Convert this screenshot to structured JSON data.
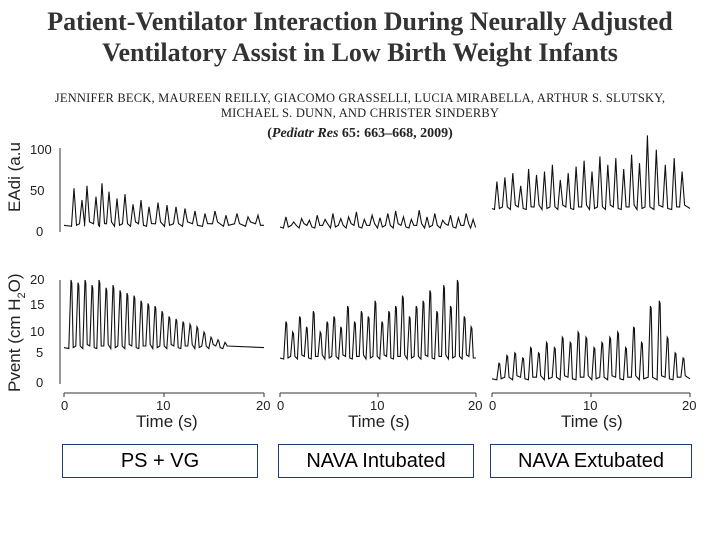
{
  "paper": {
    "title_line1": "Patient-Ventilator Interaction During Neurally Adjusted",
    "title_line2": "Ventilatory Assist in Low Birth Weight Infants",
    "authors_line1": "JENNIFER BECK, MAUREEN REILLY, GIACOMO GRASSELLI, LUCIA MIRABELLA, ARTHUR S. SLUTSKY,",
    "authors_line2": "MICHAEL S. DUNN, AND CHRISTER SINDERBY",
    "citation_journal": "Pediatr Res",
    "citation_rest": "65: 663–668, 2009"
  },
  "figure": {
    "eadi_ylabel": "EAdi (a.u",
    "pvent_ylabel_main": "Pvent (cm H",
    "pvent_ylabel_sub": "2",
    "pvent_ylabel_end": "O)",
    "eadi_ticks": [
      "0",
      "50",
      "100"
    ],
    "pvent_ticks": [
      "0",
      "5",
      "10",
      "15",
      "20"
    ],
    "x_ticks": [
      "0",
      "10",
      "20"
    ],
    "xlabel": "Time (s)"
  },
  "buttons": [
    {
      "label": "PS + VG"
    },
    {
      "label": "NAVA Intubated"
    },
    {
      "label": "NAVA Extubated"
    }
  ],
  "chart_data": {
    "type": "line",
    "xlabel": "Time (s)",
    "xlim": [
      0,
      20
    ],
    "panels": [
      {
        "mode": "PS + VG",
        "signal": "EAdi",
        "ylabel": "EAdi (a.u",
        "ylim": [
          0,
          100
        ],
        "breaths": [
          1,
          1.8,
          2.3,
          3.2,
          3.8,
          4.5,
          5.3,
          6.1,
          6.9,
          7.7,
          8.5,
          9.4,
          10.3,
          11.2,
          12.1,
          13.1,
          14.1,
          15.1,
          16.2,
          17.3,
          18.4,
          19.4
        ],
        "peaks": [
          52,
          38,
          55,
          42,
          58,
          48,
          40,
          45,
          33,
          38,
          30,
          35,
          32,
          30,
          28,
          25,
          22,
          25,
          20,
          22,
          18,
          20
        ],
        "baseline": 8
      },
      {
        "mode": "NAVA Intubated",
        "signal": "EAdi",
        "ylabel": "EAdi (a.u",
        "ylim": [
          0,
          100
        ],
        "breaths": [
          0.6,
          1.4,
          2.2,
          3,
          3.8,
          4.6,
          5.4,
          6.2,
          7,
          7.8,
          8.6,
          9.4,
          10.2,
          11,
          11.8,
          12.6,
          13.4,
          14.2,
          15,
          15.8,
          16.6,
          17.4,
          18.2,
          19,
          19.7
        ],
        "peaks": [
          18,
          12,
          16,
          14,
          20,
          15,
          22,
          16,
          18,
          24,
          15,
          20,
          17,
          22,
          25,
          18,
          15,
          26,
          18,
          22,
          14,
          20,
          17,
          22,
          15
        ],
        "baseline": 6
      },
      {
        "mode": "NAVA Extubated",
        "signal": "EAdi",
        "ylabel": "EAdi (a.u",
        "ylim": [
          0,
          100
        ],
        "breaths": [
          0.5,
          1.3,
          2.1,
          2.9,
          3.7,
          4.5,
          5.3,
          6.1,
          6.9,
          7.7,
          8.5,
          9.3,
          10.1,
          10.9,
          11.7,
          12.5,
          13.3,
          14.1,
          14.9,
          15.7,
          16.6,
          17.5,
          18.4,
          19.2
        ],
        "peaks": [
          60,
          65,
          70,
          55,
          75,
          68,
          72,
          80,
          62,
          70,
          78,
          85,
          72,
          90,
          80,
          88,
          75,
          92,
          82,
          115,
          98,
          80,
          88,
          72
        ],
        "baseline": 28
      },
      {
        "mode": "PS + VG",
        "signal": "Pvent",
        "ylabel": "Pvent (cm H2O)",
        "ylim": [
          0,
          20
        ],
        "breaths": [
          0.7,
          1.4,
          2.1,
          2.8,
          3.5,
          4.2,
          4.9,
          5.6,
          6.3,
          7,
          7.7,
          8.4,
          9.1,
          9.8,
          10.5,
          11.2,
          11.9,
          12.6,
          13.3,
          14,
          14.7,
          15.4,
          16.1
        ],
        "peaks": [
          20,
          19.5,
          20,
          19,
          20,
          18.5,
          19,
          18,
          17.5,
          17,
          16,
          15.5,
          15,
          14,
          13,
          12.5,
          12,
          11.5,
          11,
          10,
          9,
          8.5,
          8
        ],
        "baseline": 7
      },
      {
        "mode": "NAVA Intubated",
        "signal": "Pvent",
        "ylabel": "Pvent (cm H2O)",
        "ylim": [
          0,
          20
        ],
        "breaths": [
          0.6,
          1.3,
          2,
          2.7,
          3.4,
          4.1,
          4.8,
          5.5,
          6.2,
          6.9,
          7.6,
          8.3,
          9,
          9.7,
          10.4,
          11.1,
          11.8,
          12.5,
          13.2,
          13.9,
          14.6,
          15.3,
          16,
          16.7,
          17.4,
          18.1,
          18.8,
          19.5
        ],
        "peaks": [
          12,
          10,
          13,
          11,
          14,
          10,
          12,
          13,
          11,
          15,
          12,
          14,
          13,
          16,
          12,
          14,
          15,
          17,
          13,
          15,
          16,
          18,
          14,
          19,
          15,
          20,
          13,
          11
        ],
        "baseline": 5
      },
      {
        "mode": "NAVA Extubated",
        "signal": "Pvent",
        "ylabel": "Pvent (cm H2O)",
        "ylim": [
          0,
          20
        ],
        "breaths": [
          0.7,
          1.5,
          2.3,
          3.1,
          3.9,
          4.7,
          5.5,
          6.3,
          7.1,
          7.9,
          8.7,
          9.5,
          10.3,
          11.1,
          11.9,
          12.7,
          13.5,
          14.3,
          15.1,
          16,
          16.9,
          17.7,
          18.5,
          19.3
        ],
        "peaks": [
          4,
          5.5,
          6,
          5,
          7,
          6,
          8,
          7,
          9,
          8,
          10,
          9,
          7,
          8,
          9,
          10,
          7,
          11,
          8,
          15,
          16,
          9,
          6,
          5
        ],
        "baseline": 1
      }
    ]
  }
}
